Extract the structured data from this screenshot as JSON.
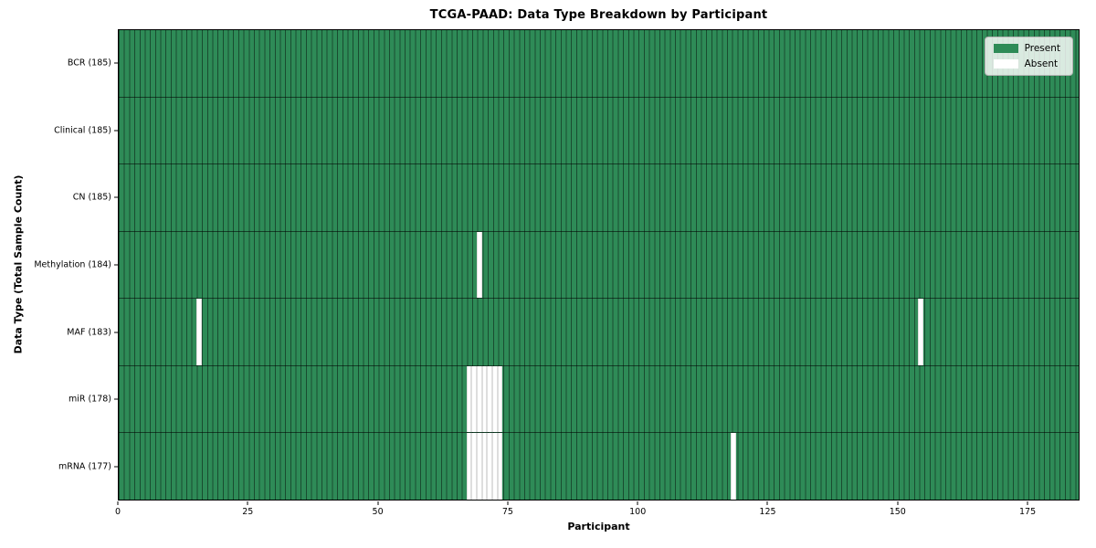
{
  "chart_data": {
    "type": "heatmap",
    "title": "TCGA-PAAD: Data Type Breakdown by Participant",
    "xlabel": "Participant",
    "ylabel": "Data Type (Total Sample Count)",
    "x_ticks": [
      0,
      25,
      50,
      75,
      100,
      125,
      150,
      175
    ],
    "xlim": [
      0,
      185
    ],
    "n_participants": 185,
    "cell_values": "binary present/absent per participant per data type",
    "grid": "cell edge lines on, row separator lines on",
    "legend_position": "upper right",
    "legend": [
      {
        "label": "Present",
        "color": "#2e8b57"
      },
      {
        "label": "Absent",
        "color": "#ffffff"
      }
    ],
    "colors": {
      "present": "#2e8b57",
      "absent": "#ffffff",
      "cell_edge": "rgba(0,0,0,0.45)",
      "spine": "#000000"
    },
    "rows": [
      {
        "label": "BCR (185)",
        "data_type": "BCR",
        "total_samples": 185,
        "absent_participants": []
      },
      {
        "label": "Clinical (185)",
        "data_type": "Clinical",
        "total_samples": 185,
        "absent_participants": []
      },
      {
        "label": "CN (185)",
        "data_type": "CN",
        "total_samples": 185,
        "absent_participants": []
      },
      {
        "label": "Methylation (184)",
        "data_type": "Methylation",
        "total_samples": 184,
        "absent_participants": [
          69
        ]
      },
      {
        "label": "MAF (183)",
        "data_type": "MAF",
        "total_samples": 183,
        "absent_participants": [
          15,
          154
        ]
      },
      {
        "label": "miR (178)",
        "data_type": "miR",
        "total_samples": 178,
        "absent_participants": [
          67,
          68,
          69,
          70,
          71,
          72,
          73
        ]
      },
      {
        "label": "mRNA (177)",
        "data_type": "mRNA",
        "total_samples": 177,
        "absent_participants": [
          67,
          68,
          69,
          70,
          71,
          72,
          73,
          118
        ]
      }
    ]
  }
}
